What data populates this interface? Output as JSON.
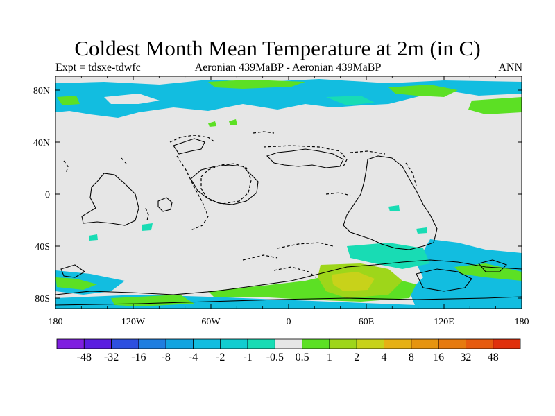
{
  "title": "Coldest Month Mean Temperature at 2m (in C)",
  "subtitle_left": "Expt = tdsxe-tdwfc",
  "subtitle_center": "Aeronian 439MaBP - Aeronian 439MaBP",
  "subtitle_right": "ANN",
  "lat_ticks": [
    "80N",
    "40N",
    "0",
    "40S",
    "80S"
  ],
  "lon_ticks": [
    "180",
    "120W",
    "60W",
    "0",
    "60E",
    "120E",
    "180"
  ],
  "colorbar": {
    "colors": [
      "#7f1fe0",
      "#5a1ee0",
      "#2d4fe0",
      "#1f7ee0",
      "#12a4e0",
      "#12bde0",
      "#12cdd0",
      "#18dcb4",
      "#e6e6e6",
      "#5ce024",
      "#9ed61a",
      "#c8d21a",
      "#e6b014",
      "#e69410",
      "#e67a0e",
      "#e65a0e",
      "#e0300c"
    ],
    "labels": [
      "-48",
      "-32",
      "-16",
      "-8",
      "-4",
      "-2",
      "-1",
      "-0.5",
      "0.5",
      "1",
      "2",
      "4",
      "8",
      "16",
      "32",
      "48"
    ]
  },
  "colors": {
    "background": "#e6e6e6",
    "frame": "#000000"
  }
}
